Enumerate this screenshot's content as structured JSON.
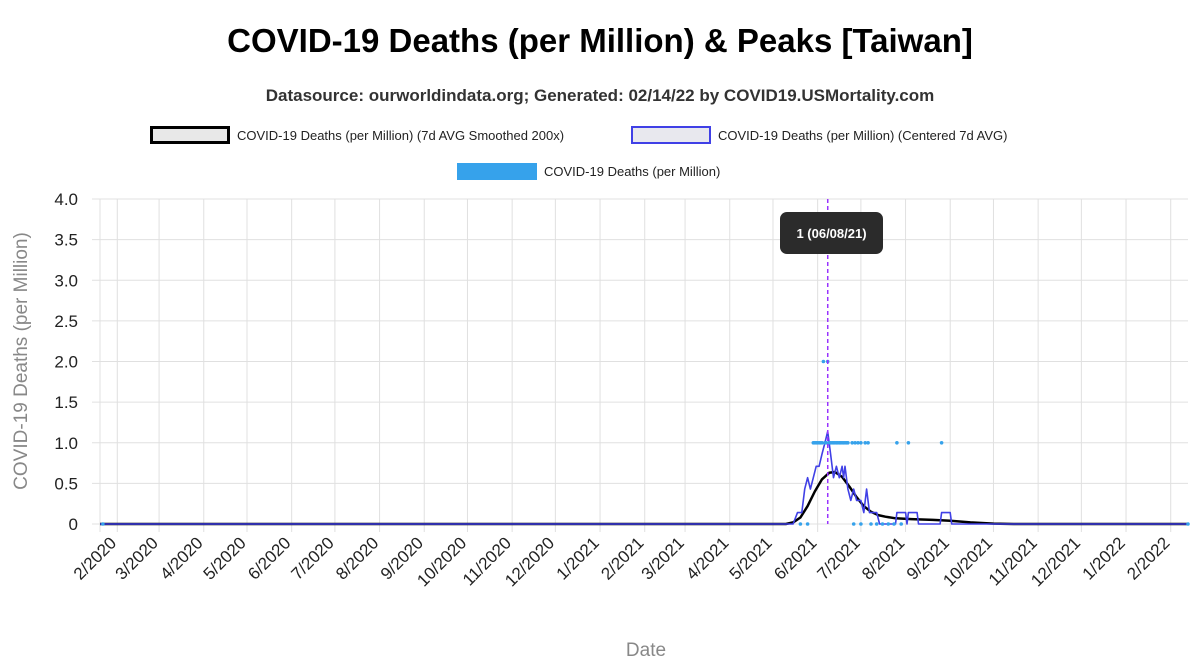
{
  "chart_data": {
    "type": "line",
    "title": "COVID-19 Deaths (per Million) & Peaks [Taiwan]",
    "subtitle": "Datasource: ourworldindata.org; Generated: 02/14/22 by COVID19.USMortality.com",
    "xlabel": "Date",
    "ylabel": "COVID-19 Deaths (per Million)",
    "ylim": [
      0,
      4.0
    ],
    "y_ticks": [
      "0",
      "0.5",
      "1.0",
      "1.5",
      "2.0",
      "2.5",
      "3.0",
      "3.5",
      "4.0"
    ],
    "x_ticks": [
      "2/2020",
      "3/2020",
      "4/2020",
      "5/2020",
      "6/2020",
      "7/2020",
      "8/2020",
      "9/2020",
      "10/2020",
      "11/2020",
      "12/2020",
      "1/2021",
      "2/2021",
      "3/2021",
      "4/2021",
      "5/2021",
      "6/2021",
      "7/2021",
      "8/2021",
      "9/2021",
      "10/2021",
      "11/2021",
      "12/2021",
      "1/2022",
      "2/2022"
    ],
    "grid": true,
    "legend_position": "top",
    "series": [
      {
        "name": "COVID-19 Deaths (per Million) (7d AVG Smoothed 200x)",
        "color": "#000000",
        "style": "line",
        "points": [
          [
            "2020-01-20",
            0
          ],
          [
            "2021-05-10",
            0
          ],
          [
            "2021-05-15",
            0.02
          ],
          [
            "2021-05-20",
            0.08
          ],
          [
            "2021-05-25",
            0.22
          ],
          [
            "2021-05-30",
            0.4
          ],
          [
            "2021-06-04",
            0.55
          ],
          [
            "2021-06-09",
            0.63
          ],
          [
            "2021-06-13",
            0.64
          ],
          [
            "2021-06-18",
            0.58
          ],
          [
            "2021-06-23",
            0.46
          ],
          [
            "2021-06-28",
            0.33
          ],
          [
            "2021-07-03",
            0.22
          ],
          [
            "2021-07-08",
            0.15
          ],
          [
            "2021-07-13",
            0.11
          ],
          [
            "2021-07-18",
            0.09
          ],
          [
            "2021-07-25",
            0.07
          ],
          [
            "2021-08-05",
            0.06
          ],
          [
            "2021-08-20",
            0.05
          ],
          [
            "2021-09-01",
            0.04
          ],
          [
            "2021-09-15",
            0.02
          ],
          [
            "2021-10-01",
            0.005
          ],
          [
            "2021-10-15",
            0
          ],
          [
            "2022-02-13",
            0
          ]
        ]
      },
      {
        "name": "COVID-19 Deaths (per Million) (Centered 7d AVG)",
        "color": "#4040e6",
        "style": "line",
        "points": [
          [
            "2020-01-20",
            0
          ],
          [
            "2021-05-15",
            0
          ],
          [
            "2021-05-18",
            0.14
          ],
          [
            "2021-05-21",
            0.14
          ],
          [
            "2021-05-23",
            0.43
          ],
          [
            "2021-05-25",
            0.57
          ],
          [
            "2021-05-27",
            0.43
          ],
          [
            "2021-05-29",
            0.57
          ],
          [
            "2021-05-31",
            0.71
          ],
          [
            "2021-06-02",
            0.71
          ],
          [
            "2021-06-04",
            0.86
          ],
          [
            "2021-06-06",
            1.0
          ],
          [
            "2021-06-08",
            1.14
          ],
          [
            "2021-06-10",
            0.86
          ],
          [
            "2021-06-12",
            0.57
          ],
          [
            "2021-06-14",
            0.71
          ],
          [
            "2021-06-16",
            0.57
          ],
          [
            "2021-06-18",
            0.71
          ],
          [
            "2021-06-19",
            0.57
          ],
          [
            "2021-06-20",
            0.71
          ],
          [
            "2021-06-22",
            0.43
          ],
          [
            "2021-06-24",
            0.29
          ],
          [
            "2021-06-26",
            0.43
          ],
          [
            "2021-06-28",
            0.29
          ],
          [
            "2021-07-01",
            0.29
          ],
          [
            "2021-07-03",
            0.14
          ],
          [
            "2021-07-05",
            0.43
          ],
          [
            "2021-07-07",
            0.14
          ],
          [
            "2021-07-12",
            0.14
          ],
          [
            "2021-07-14",
            0
          ],
          [
            "2021-07-25",
            0
          ],
          [
            "2021-07-26",
            0.14
          ],
          [
            "2021-08-01",
            0.14
          ],
          [
            "2021-08-02",
            0
          ],
          [
            "2021-08-03",
            0.14
          ],
          [
            "2021-08-09",
            0.14
          ],
          [
            "2021-08-10",
            0
          ],
          [
            "2021-08-25",
            0
          ],
          [
            "2021-08-26",
            0.14
          ],
          [
            "2021-09-01",
            0.14
          ],
          [
            "2021-09-02",
            0
          ],
          [
            "2022-02-13",
            0
          ]
        ]
      },
      {
        "name": "COVID-19 Deaths (per Million)",
        "color": "#36a2eb",
        "style": "scatter",
        "points": [
          [
            "2021-06-05",
            2
          ],
          [
            "2021-06-08",
            2
          ],
          [
            "2021-05-29",
            1
          ],
          [
            "2021-05-30",
            1
          ],
          [
            "2021-05-31",
            1
          ],
          [
            "2021-06-01",
            1
          ],
          [
            "2021-06-02",
            1
          ],
          [
            "2021-06-03",
            1
          ],
          [
            "2021-06-04",
            1
          ],
          [
            "2021-06-06",
            1
          ],
          [
            "2021-06-07",
            1
          ],
          [
            "2021-06-09",
            1
          ],
          [
            "2021-06-10",
            1
          ],
          [
            "2021-06-11",
            1
          ],
          [
            "2021-06-12",
            1
          ],
          [
            "2021-06-13",
            1
          ],
          [
            "2021-06-14",
            1
          ],
          [
            "2021-06-15",
            1
          ],
          [
            "2021-06-16",
            1
          ],
          [
            "2021-06-17",
            1
          ],
          [
            "2021-06-18",
            1
          ],
          [
            "2021-06-19",
            1
          ],
          [
            "2021-06-20",
            1
          ],
          [
            "2021-06-21",
            1
          ],
          [
            "2021-06-22",
            1
          ],
          [
            "2021-06-25",
            1
          ],
          [
            "2021-06-27",
            1
          ],
          [
            "2021-06-29",
            1
          ],
          [
            "2021-07-01",
            1
          ],
          [
            "2021-07-04",
            1
          ],
          [
            "2021-07-06",
            1
          ],
          [
            "2021-07-26",
            1
          ],
          [
            "2021-08-03",
            1
          ],
          [
            "2021-08-26",
            1
          ],
          [
            "2020-01-22",
            0
          ],
          [
            "2021-05-20",
            0
          ],
          [
            "2021-05-25",
            0
          ],
          [
            "2021-06-26",
            0
          ],
          [
            "2021-07-01",
            0
          ],
          [
            "2021-07-08",
            0
          ],
          [
            "2021-07-12",
            0
          ],
          [
            "2021-07-16",
            0
          ],
          [
            "2021-07-20",
            0
          ],
          [
            "2021-07-24",
            0
          ],
          [
            "2021-07-29",
            0
          ],
          [
            "2022-02-13",
            0
          ]
        ]
      }
    ],
    "annotations": [
      {
        "type": "vertical-line",
        "x": "2021-06-08",
        "color": "#9933ff",
        "label": "1 (06/08/21)"
      }
    ]
  }
}
